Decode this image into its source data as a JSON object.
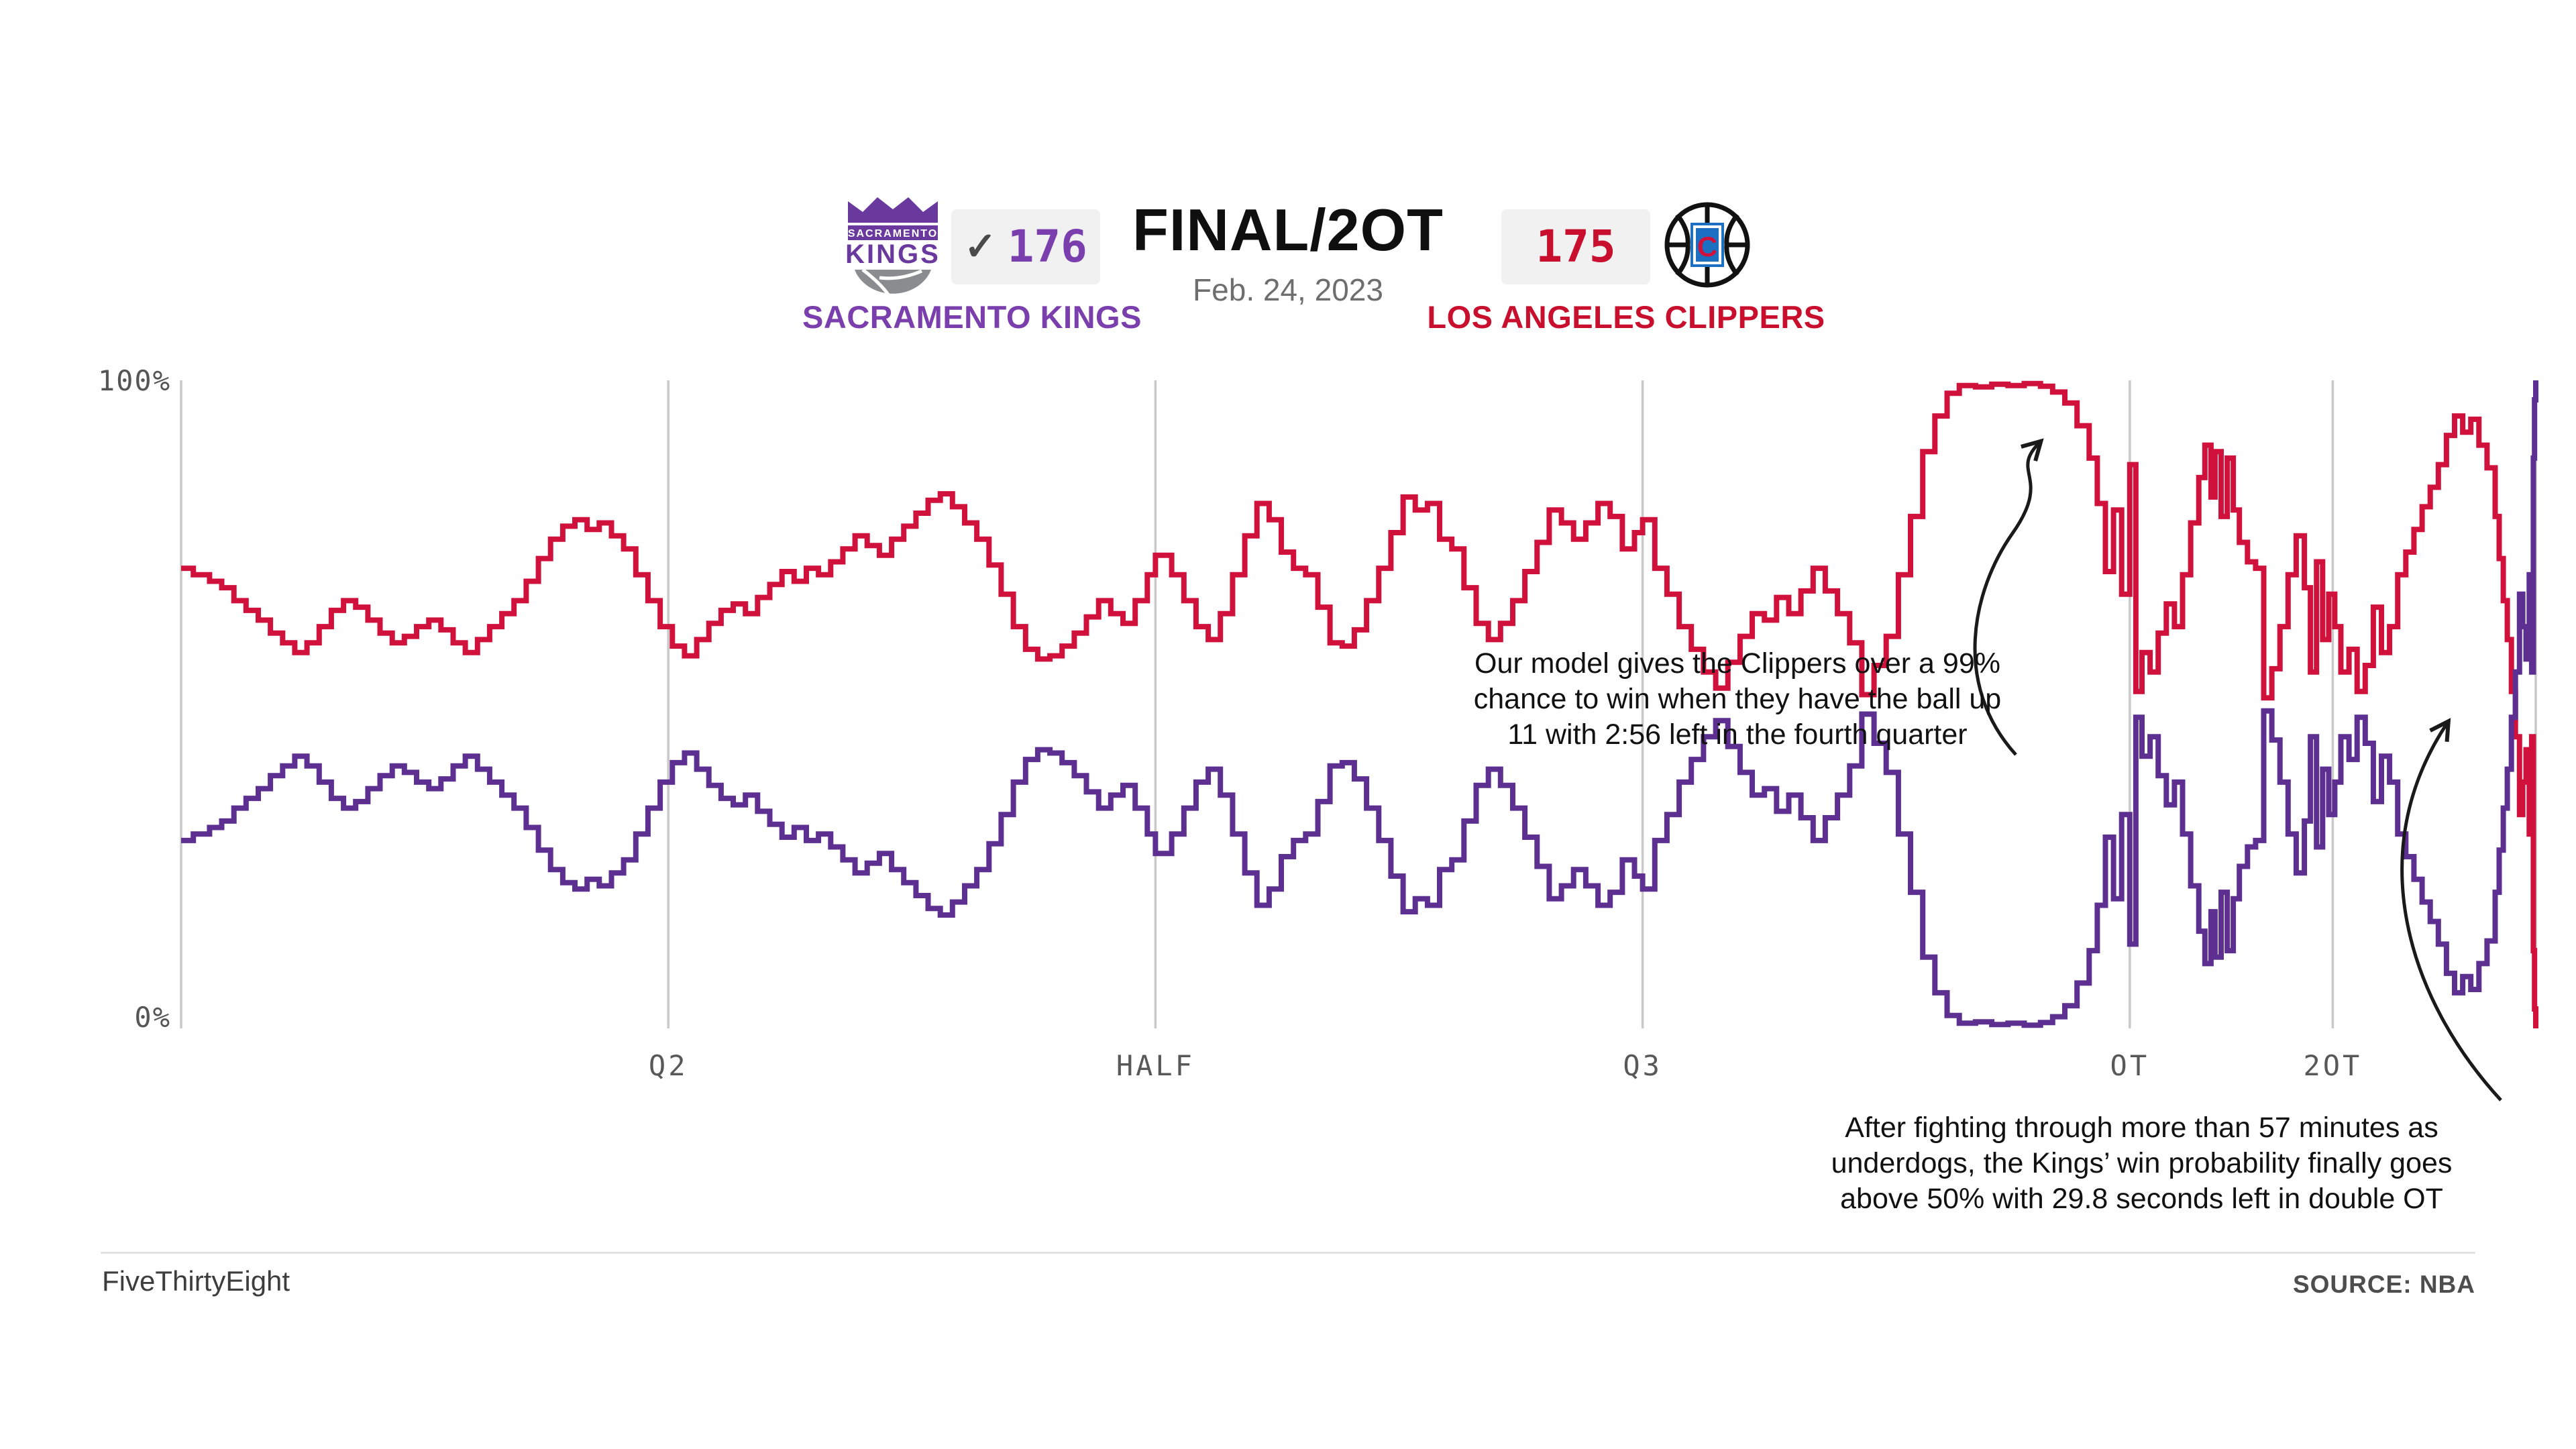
{
  "header": {
    "status": "FINAL/2OT",
    "date": "Feb. 24, 2023",
    "kings": {
      "name": "SACRAMENTO KINGS",
      "score": "176",
      "winner_check": "✓"
    },
    "clippers": {
      "name": "LOS ANGELES CLIPPERS",
      "score": "175"
    }
  },
  "axis": {
    "y_top": "100%",
    "y_bottom": "0%"
  },
  "annotations": {
    "model": {
      "lines": [
        "Our model gives the Clippers over a 99%",
        "chance to win when they have the ball up",
        "11 with 2:56 left in the fourth quarter"
      ]
    },
    "comeback": {
      "lines": [
        "After fighting through more than 57 minutes as",
        "underdogs, the Kings’ win probability finally goes",
        "above 50% with 29.8 seconds left in double OT"
      ]
    }
  },
  "footer": {
    "brand": "FiveThirtyEight",
    "source": "SOURCE: NBA"
  },
  "colors": {
    "kings_line": "#5c2f91",
    "clippers_line": "#d0113c",
    "kings_text": "#7a3fad",
    "clippers_text": "#c8102e",
    "grid": "#c9c9c9",
    "arrow": "#1a1a1a"
  },
  "chart_data": {
    "type": "line",
    "subtype": "step-after",
    "x_max": 58,
    "ylim": [
      0,
      100
    ],
    "grid": "vertical-only",
    "legend": "none (series colored by team colors in header)",
    "x_ticks": [
      {
        "t": 12,
        "label": "Q2"
      },
      {
        "t": 24,
        "label": "HALF"
      },
      {
        "t": 36,
        "label": "Q3"
      },
      {
        "t": 48,
        "label": "OT"
      },
      {
        "t": 53,
        "label": "2OT"
      }
    ],
    "y_tick_labels": [
      "100%",
      "0%"
    ],
    "series": [
      {
        "name": "Los Angeles Clippers win probability (%) vs game minute",
        "color_key": "clippers_line",
        "points": [
          [
            0,
            71
          ],
          [
            0.3,
            70
          ],
          [
            0.7,
            69
          ],
          [
            1,
            68
          ],
          [
            1.3,
            66
          ],
          [
            1.6,
            64.5
          ],
          [
            1.9,
            63
          ],
          [
            2.2,
            61
          ],
          [
            2.5,
            59.5
          ],
          [
            2.8,
            58
          ],
          [
            3.1,
            59.5
          ],
          [
            3.4,
            62
          ],
          [
            3.7,
            64.5
          ],
          [
            4,
            66
          ],
          [
            4.3,
            65
          ],
          [
            4.6,
            63
          ],
          [
            4.9,
            61
          ],
          [
            5.2,
            59.5
          ],
          [
            5.5,
            60.5
          ],
          [
            5.8,
            62
          ],
          [
            6.1,
            63
          ],
          [
            6.4,
            61.5
          ],
          [
            6.7,
            59.5
          ],
          [
            7,
            58
          ],
          [
            7.3,
            60
          ],
          [
            7.6,
            62
          ],
          [
            7.9,
            64
          ],
          [
            8.2,
            66
          ],
          [
            8.5,
            69
          ],
          [
            8.8,
            72.5
          ],
          [
            9.1,
            75.5
          ],
          [
            9.4,
            77.5
          ],
          [
            9.7,
            78.5
          ],
          [
            10,
            77
          ],
          [
            10.3,
            78
          ],
          [
            10.6,
            76
          ],
          [
            10.9,
            74
          ],
          [
            11.2,
            70
          ],
          [
            11.5,
            66
          ],
          [
            11.8,
            62
          ],
          [
            12.1,
            59
          ],
          [
            12.4,
            57.5
          ],
          [
            12.7,
            60
          ],
          [
            13,
            62.5
          ],
          [
            13.3,
            64.5
          ],
          [
            13.6,
            65.5
          ],
          [
            13.9,
            64
          ],
          [
            14.2,
            66.5
          ],
          [
            14.5,
            68.5
          ],
          [
            14.8,
            70.5
          ],
          [
            15.1,
            69
          ],
          [
            15.4,
            71
          ],
          [
            15.7,
            70
          ],
          [
            16,
            72
          ],
          [
            16.3,
            74
          ],
          [
            16.6,
            76
          ],
          [
            16.9,
            74.5
          ],
          [
            17.2,
            73
          ],
          [
            17.5,
            75.5
          ],
          [
            17.8,
            77.5
          ],
          [
            18.1,
            79.5
          ],
          [
            18.4,
            81.5
          ],
          [
            18.7,
            82.5
          ],
          [
            19,
            80.5
          ],
          [
            19.3,
            78
          ],
          [
            19.6,
            75.5
          ],
          [
            19.9,
            71.5
          ],
          [
            20.2,
            67
          ],
          [
            20.5,
            62
          ],
          [
            20.8,
            58.5
          ],
          [
            21.1,
            57
          ],
          [
            21.4,
            57.5
          ],
          [
            21.7,
            59
          ],
          [
            22,
            61
          ],
          [
            22.3,
            63.5
          ],
          [
            22.6,
            66
          ],
          [
            22.9,
            64
          ],
          [
            23.2,
            62.5
          ],
          [
            23.5,
            66
          ],
          [
            23.8,
            70
          ],
          [
            24,
            73
          ],
          [
            24.4,
            70
          ],
          [
            24.7,
            66
          ],
          [
            25,
            62
          ],
          [
            25.3,
            60
          ],
          [
            25.6,
            64
          ],
          [
            25.9,
            70
          ],
          [
            26.2,
            76
          ],
          [
            26.5,
            81
          ],
          [
            26.8,
            78.5
          ],
          [
            27.1,
            73.5
          ],
          [
            27.4,
            71
          ],
          [
            27.7,
            70
          ],
          [
            28,
            65
          ],
          [
            28.3,
            59.5
          ],
          [
            28.6,
            59
          ],
          [
            28.9,
            61.5
          ],
          [
            29.2,
            66
          ],
          [
            29.5,
            71
          ],
          [
            29.8,
            76.5
          ],
          [
            30.1,
            82
          ],
          [
            30.4,
            80
          ],
          [
            30.7,
            81
          ],
          [
            31,
            75.5
          ],
          [
            31.3,
            74
          ],
          [
            31.6,
            68
          ],
          [
            31.9,
            62.5
          ],
          [
            32.2,
            60
          ],
          [
            32.5,
            62.5
          ],
          [
            32.8,
            66
          ],
          [
            33.1,
            70.5
          ],
          [
            33.4,
            75
          ],
          [
            33.7,
            80
          ],
          [
            34,
            78
          ],
          [
            34.3,
            75.5
          ],
          [
            34.6,
            78
          ],
          [
            34.9,
            81
          ],
          [
            35.2,
            79
          ],
          [
            35.5,
            74
          ],
          [
            35.8,
            76.5
          ],
          [
            36,
            78.5
          ],
          [
            36.3,
            71
          ],
          [
            36.6,
            67
          ],
          [
            36.9,
            62
          ],
          [
            37.2,
            58.5
          ],
          [
            37.5,
            55
          ],
          [
            37.8,
            52.5
          ],
          [
            38.1,
            56.5
          ],
          [
            38.4,
            60.5
          ],
          [
            38.7,
            64
          ],
          [
            39,
            63
          ],
          [
            39.3,
            66.5
          ],
          [
            39.6,
            64
          ],
          [
            39.9,
            67.5
          ],
          [
            40.2,
            71
          ],
          [
            40.5,
            67.5
          ],
          [
            40.8,
            64
          ],
          [
            41.1,
            59.5
          ],
          [
            41.4,
            51.5
          ],
          [
            41.7,
            56
          ],
          [
            42,
            60.5
          ],
          [
            42.3,
            70
          ],
          [
            42.6,
            79
          ],
          [
            42.9,
            89
          ],
          [
            43.2,
            94.5
          ],
          [
            43.5,
            98
          ],
          [
            43.8,
            99.2
          ],
          [
            44.2,
            99
          ],
          [
            44.6,
            99.4
          ],
          [
            45,
            99.2
          ],
          [
            45.4,
            99.5
          ],
          [
            45.8,
            99.1
          ],
          [
            46.1,
            98.2
          ],
          [
            46.4,
            96.5
          ],
          [
            46.7,
            93
          ],
          [
            47,
            88
          ],
          [
            47.2,
            81
          ],
          [
            47.4,
            70.5
          ],
          [
            47.6,
            80
          ],
          [
            47.8,
            67
          ],
          [
            48,
            87
          ],
          [
            48.15,
            52
          ],
          [
            48.3,
            58
          ],
          [
            48.5,
            55
          ],
          [
            48.7,
            61
          ],
          [
            48.9,
            65.5
          ],
          [
            49.1,
            62
          ],
          [
            49.3,
            70
          ],
          [
            49.5,
            78
          ],
          [
            49.7,
            85
          ],
          [
            49.85,
            90
          ],
          [
            50,
            82
          ],
          [
            50.1,
            89
          ],
          [
            50.25,
            79
          ],
          [
            50.4,
            88
          ],
          [
            50.55,
            80
          ],
          [
            50.7,
            75
          ],
          [
            50.9,
            72
          ],
          [
            51.1,
            71
          ],
          [
            51.3,
            51
          ],
          [
            51.5,
            55.5
          ],
          [
            51.7,
            62
          ],
          [
            51.9,
            70
          ],
          [
            52.1,
            76
          ],
          [
            52.3,
            68
          ],
          [
            52.45,
            55
          ],
          [
            52.6,
            72
          ],
          [
            52.75,
            60
          ],
          [
            52.9,
            67
          ],
          [
            53.05,
            62
          ],
          [
            53.2,
            55
          ],
          [
            53.4,
            58.5
          ],
          [
            53.6,
            52
          ],
          [
            53.8,
            56
          ],
          [
            54,
            65
          ],
          [
            54.2,
            58
          ],
          [
            54.4,
            62
          ],
          [
            54.6,
            70
          ],
          [
            54.8,
            73.5
          ],
          [
            55,
            77
          ],
          [
            55.2,
            80.5
          ],
          [
            55.4,
            83.5
          ],
          [
            55.6,
            87
          ],
          [
            55.8,
            91.5
          ],
          [
            56,
            94.5
          ],
          [
            56.2,
            92
          ],
          [
            56.4,
            94
          ],
          [
            56.6,
            90
          ],
          [
            56.8,
            86.5
          ],
          [
            57,
            79
          ],
          [
            57.1,
            72.5
          ],
          [
            57.2,
            66
          ],
          [
            57.3,
            60
          ],
          [
            57.4,
            52
          ],
          [
            57.5,
            45
          ],
          [
            57.6,
            33
          ],
          [
            57.68,
            38
          ],
          [
            57.76,
            43
          ],
          [
            57.84,
            30
          ],
          [
            57.9,
            45
          ],
          [
            57.94,
            12
          ],
          [
            57.97,
            3
          ],
          [
            58,
            0
          ]
        ]
      },
      {
        "name": "Sacramento Kings win probability (%) vs game minute",
        "color_key": "kings_line",
        "derived": "100_minus_first_series"
      }
    ],
    "key_events": [
      {
        "t": 45.1,
        "clippers": 99,
        "note": "Clippers over 99% with 2:56 left in Q4"
      },
      {
        "t": 57.5,
        "kings": 55,
        "note": "Kings first exceed 50% with 29.8s left in 2OT"
      },
      {
        "t": 58,
        "kings": 100,
        "note": "Kings win 176-175"
      }
    ]
  }
}
